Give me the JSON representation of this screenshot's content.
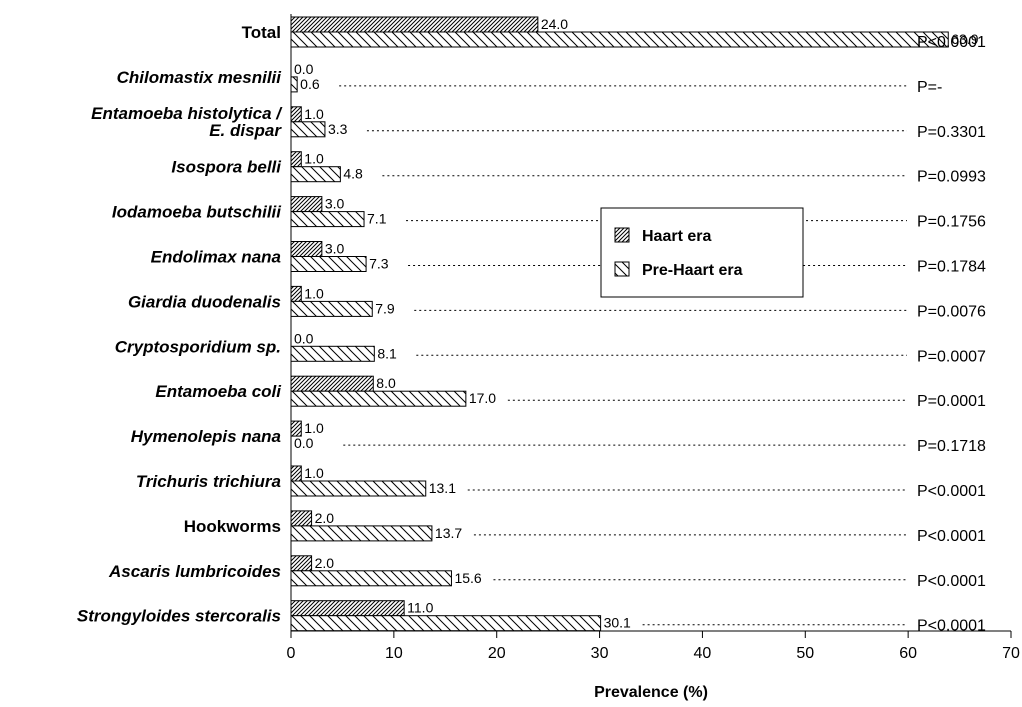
{
  "chart_data": {
    "type": "bar",
    "orientation": "horizontal",
    "title": "",
    "xlabel": "Prevalence (%)",
    "ylabel": "",
    "xlim": [
      0,
      70
    ],
    "xticks": [
      0,
      10,
      20,
      30,
      40,
      50,
      60,
      70
    ],
    "grid": false,
    "legend_position": "center",
    "categories": [
      {
        "label": [
          "Total"
        ],
        "italic": false
      },
      {
        "label": [
          "Chilomastix mesnilii"
        ],
        "italic": true
      },
      {
        "label": [
          "Entamoeba histolytica /",
          "E. dispar"
        ],
        "italic": true
      },
      {
        "label": [
          "Isospora belli"
        ],
        "italic": true
      },
      {
        "label": [
          "Iodamoeba butschilii"
        ],
        "italic": true
      },
      {
        "label": [
          "Endolimax nana"
        ],
        "italic": true
      },
      {
        "label": [
          "Giardia duodenalis"
        ],
        "italic": true
      },
      {
        "label": [
          "Cryptosporidium sp."
        ],
        "italic": true
      },
      {
        "label": [
          "Entamoeba coli"
        ],
        "italic": true
      },
      {
        "label": [
          "Hymenolepis nana"
        ],
        "italic": true
      },
      {
        "label": [
          "Trichuris trichiura"
        ],
        "italic": true
      },
      {
        "label": [
          "Hookworms"
        ],
        "italic": false
      },
      {
        "label": [
          "Ascaris lumbricoides"
        ],
        "italic": true
      },
      {
        "label": [
          "Strongyloides stercoralis"
        ],
        "italic": true
      }
    ],
    "series": [
      {
        "name": "Haart era",
        "pattern": "dense-diagonal",
        "values": [
          24.0,
          0.0,
          1.0,
          1.0,
          3.0,
          3.0,
          1.0,
          0.0,
          8.0,
          1.0,
          1.0,
          2.0,
          2.0,
          11.0
        ],
        "labels": [
          "24.0",
          "0.0",
          "1.0",
          "1.0",
          "3.0",
          "3.0",
          "1.0",
          "0.0",
          "8.0",
          "1.0",
          "1.0",
          "2.0",
          "2.0",
          "11.0"
        ]
      },
      {
        "name": "Pre-Haart era",
        "pattern": "sparse-backslash",
        "values": [
          63.9,
          0.6,
          3.3,
          4.8,
          7.1,
          7.3,
          7.9,
          8.1,
          17.0,
          0.0,
          13.1,
          13.7,
          15.6,
          30.1
        ],
        "labels": [
          "63.9",
          "0.6",
          "3.3",
          "4.8",
          "7.1",
          "7.3",
          "7.9",
          "8.1",
          "17.0",
          "0.0",
          "13.1",
          "13.7",
          "15.6",
          "30.1"
        ]
      }
    ],
    "p_values": [
      "P<0.0001",
      "P=-",
      "P=0.3301",
      "P=0.0993",
      "P=0.1756",
      "P=0.1784",
      "P=0.0076",
      "P=0.0007",
      "P=0.0001",
      "P=0.1718",
      "P<0.0001",
      "P<0.0001",
      "P<0.0001",
      "P<0.0001"
    ],
    "colors": {
      "bar_stroke": "#000000",
      "bar_fill": "#ffffff",
      "dotted_line": "#000000"
    }
  }
}
